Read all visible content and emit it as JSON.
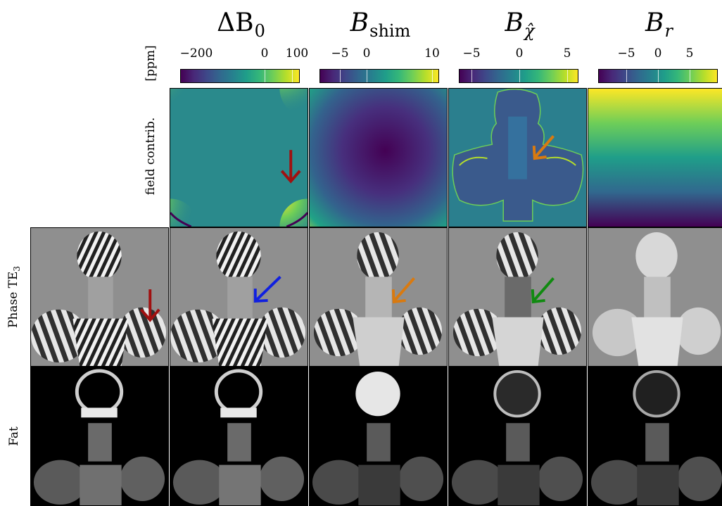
{
  "columns": [
    {
      "main": "ΔB",
      "sub": "0"
    },
    {
      "main": "B",
      "sub": "shim"
    },
    {
      "main": "B",
      "sub": "χ̂"
    },
    {
      "main": "B",
      "sub": "r"
    }
  ],
  "colorbars": [
    {
      "ticks": [
        "−200",
        "0",
        "100"
      ]
    },
    {
      "ticks": [
        "−5",
        "0",
        "10"
      ]
    },
    {
      "ticks": [
        "−5",
        "0",
        "5"
      ]
    },
    {
      "ticks": [
        "−5",
        "0",
        "5"
      ]
    }
  ],
  "colorbar_unit": "[ppm]",
  "rows": {
    "field": "field contrib.",
    "phase": "Phase TE",
    "phase_sub": "3",
    "fat": "Fat"
  },
  "colors": {
    "arrow_red": "#a01010",
    "arrow_blue": "#1020e0",
    "arrow_orange": "#d97a10",
    "arrow_green": "#108a10",
    "phase_bg": "#8f8f8f",
    "fat_bg": "#000000"
  }
}
